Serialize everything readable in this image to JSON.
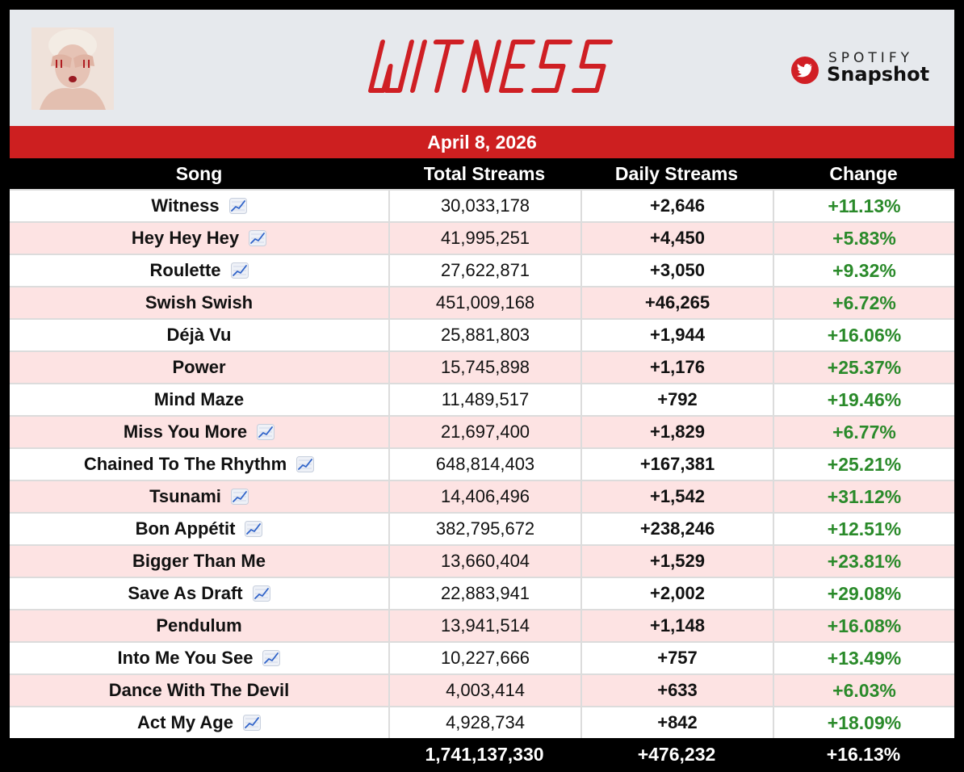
{
  "header": {
    "album_title": "WITNESS",
    "brand_top": "SPOTIFY",
    "brand_bottom": "Snapshot"
  },
  "date": "April 8, 2026",
  "columns": [
    "Song",
    "Total Streams",
    "Daily Streams",
    "Change"
  ],
  "rows": [
    {
      "song": "Witness",
      "trend": true,
      "total": "30,033,178",
      "daily": "+2,646",
      "change": "+11.13%"
    },
    {
      "song": "Hey Hey Hey",
      "trend": true,
      "total": "41,995,251",
      "daily": "+4,450",
      "change": "+5.83%"
    },
    {
      "song": "Roulette",
      "trend": true,
      "total": "27,622,871",
      "daily": "+3,050",
      "change": "+9.32%"
    },
    {
      "song": "Swish Swish",
      "trend": false,
      "total": "451,009,168",
      "daily": "+46,265",
      "change": "+6.72%"
    },
    {
      "song": "Déjà Vu",
      "trend": false,
      "total": "25,881,803",
      "daily": "+1,944",
      "change": "+16.06%"
    },
    {
      "song": "Power",
      "trend": false,
      "total": "15,745,898",
      "daily": "+1,176",
      "change": "+25.37%"
    },
    {
      "song": "Mind Maze",
      "trend": false,
      "total": "11,489,517",
      "daily": "+792",
      "change": "+19.46%"
    },
    {
      "song": "Miss You More",
      "trend": true,
      "total": "21,697,400",
      "daily": "+1,829",
      "change": "+6.77%"
    },
    {
      "song": "Chained To The Rhythm",
      "trend": true,
      "total": "648,814,403",
      "daily": "+167,381",
      "change": "+25.21%"
    },
    {
      "song": "Tsunami",
      "trend": true,
      "total": "14,406,496",
      "daily": "+1,542",
      "change": "+31.12%"
    },
    {
      "song": "Bon Appétit",
      "trend": true,
      "total": "382,795,672",
      "daily": "+238,246",
      "change": "+12.51%"
    },
    {
      "song": "Bigger Than Me",
      "trend": false,
      "total": "13,660,404",
      "daily": "+1,529",
      "change": "+23.81%"
    },
    {
      "song": "Save As Draft",
      "trend": true,
      "total": "22,883,941",
      "daily": "+2,002",
      "change": "+29.08%"
    },
    {
      "song": "Pendulum",
      "trend": false,
      "total": "13,941,514",
      "daily": "+1,148",
      "change": "+16.08%"
    },
    {
      "song": "Into Me You See",
      "trend": true,
      "total": "10,227,666",
      "daily": "+757",
      "change": "+13.49%"
    },
    {
      "song": "Dance With The Devil",
      "trend": false,
      "total": "4,003,414",
      "daily": "+633",
      "change": "+6.03%"
    },
    {
      "song": "Act My Age",
      "trend": true,
      "total": "4,928,734",
      "daily": "+842",
      "change": "+18.09%"
    }
  ],
  "totals": {
    "song": "",
    "total": "1,741,137,330",
    "daily": "+476,232",
    "change": "+16.13%"
  },
  "colors": {
    "accent_red": "#cd1f20",
    "change_green": "#2a8a2a",
    "alt_row": "#fde3e3"
  }
}
